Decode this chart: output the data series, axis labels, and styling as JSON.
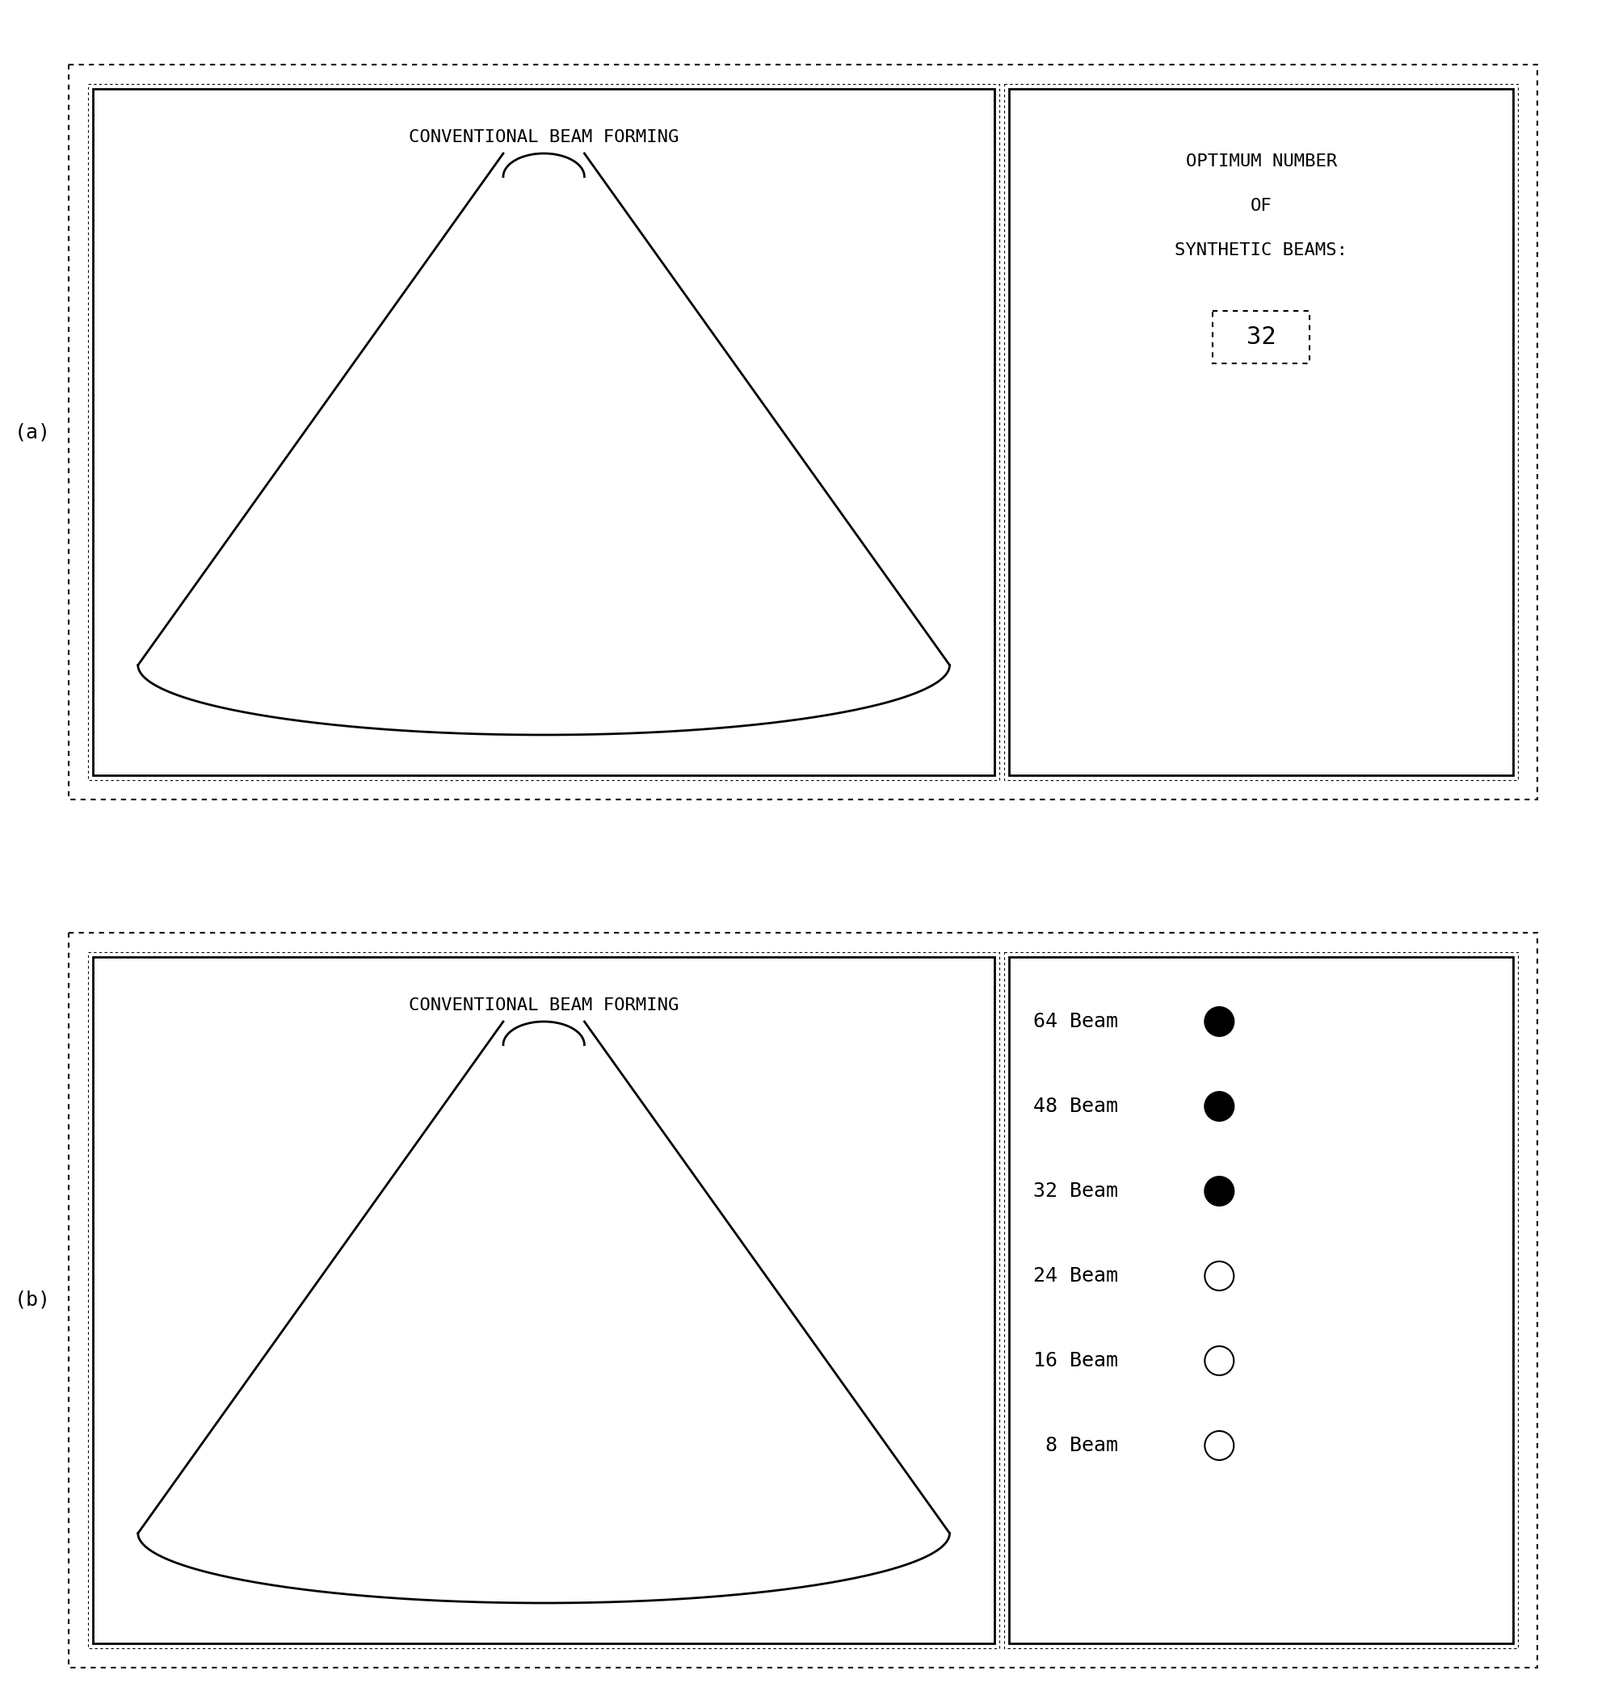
{
  "bg_color": "#ffffff",
  "label_a": "(a)",
  "label_b": "(b)",
  "panel_a_left_title": "CONVENTIONAL BEAM FORMING",
  "panel_b_left_title": "CONVENTIONAL BEAM FORMING",
  "panel_a_right_title_lines": [
    "OPTIMUM NUMBER",
    "OF",
    "SYNTHETIC BEAMS:"
  ],
  "panel_a_right_value": "32",
  "panel_b_legend": [
    {
      "label": "64 Beam",
      "filled": true
    },
    {
      "label": "48 Beam",
      "filled": true
    },
    {
      "label": "32 Beam",
      "filled": true
    },
    {
      "label": "24 Beam",
      "filled": false
    },
    {
      "label": "16 Beam",
      "filled": false
    },
    {
      "label": " 8 Beam",
      "filled": false
    }
  ],
  "font_size_title": 16,
  "font_size_label": 18,
  "font_size_legend": 18,
  "font_size_value": 22,
  "font_size_right_title": 16
}
